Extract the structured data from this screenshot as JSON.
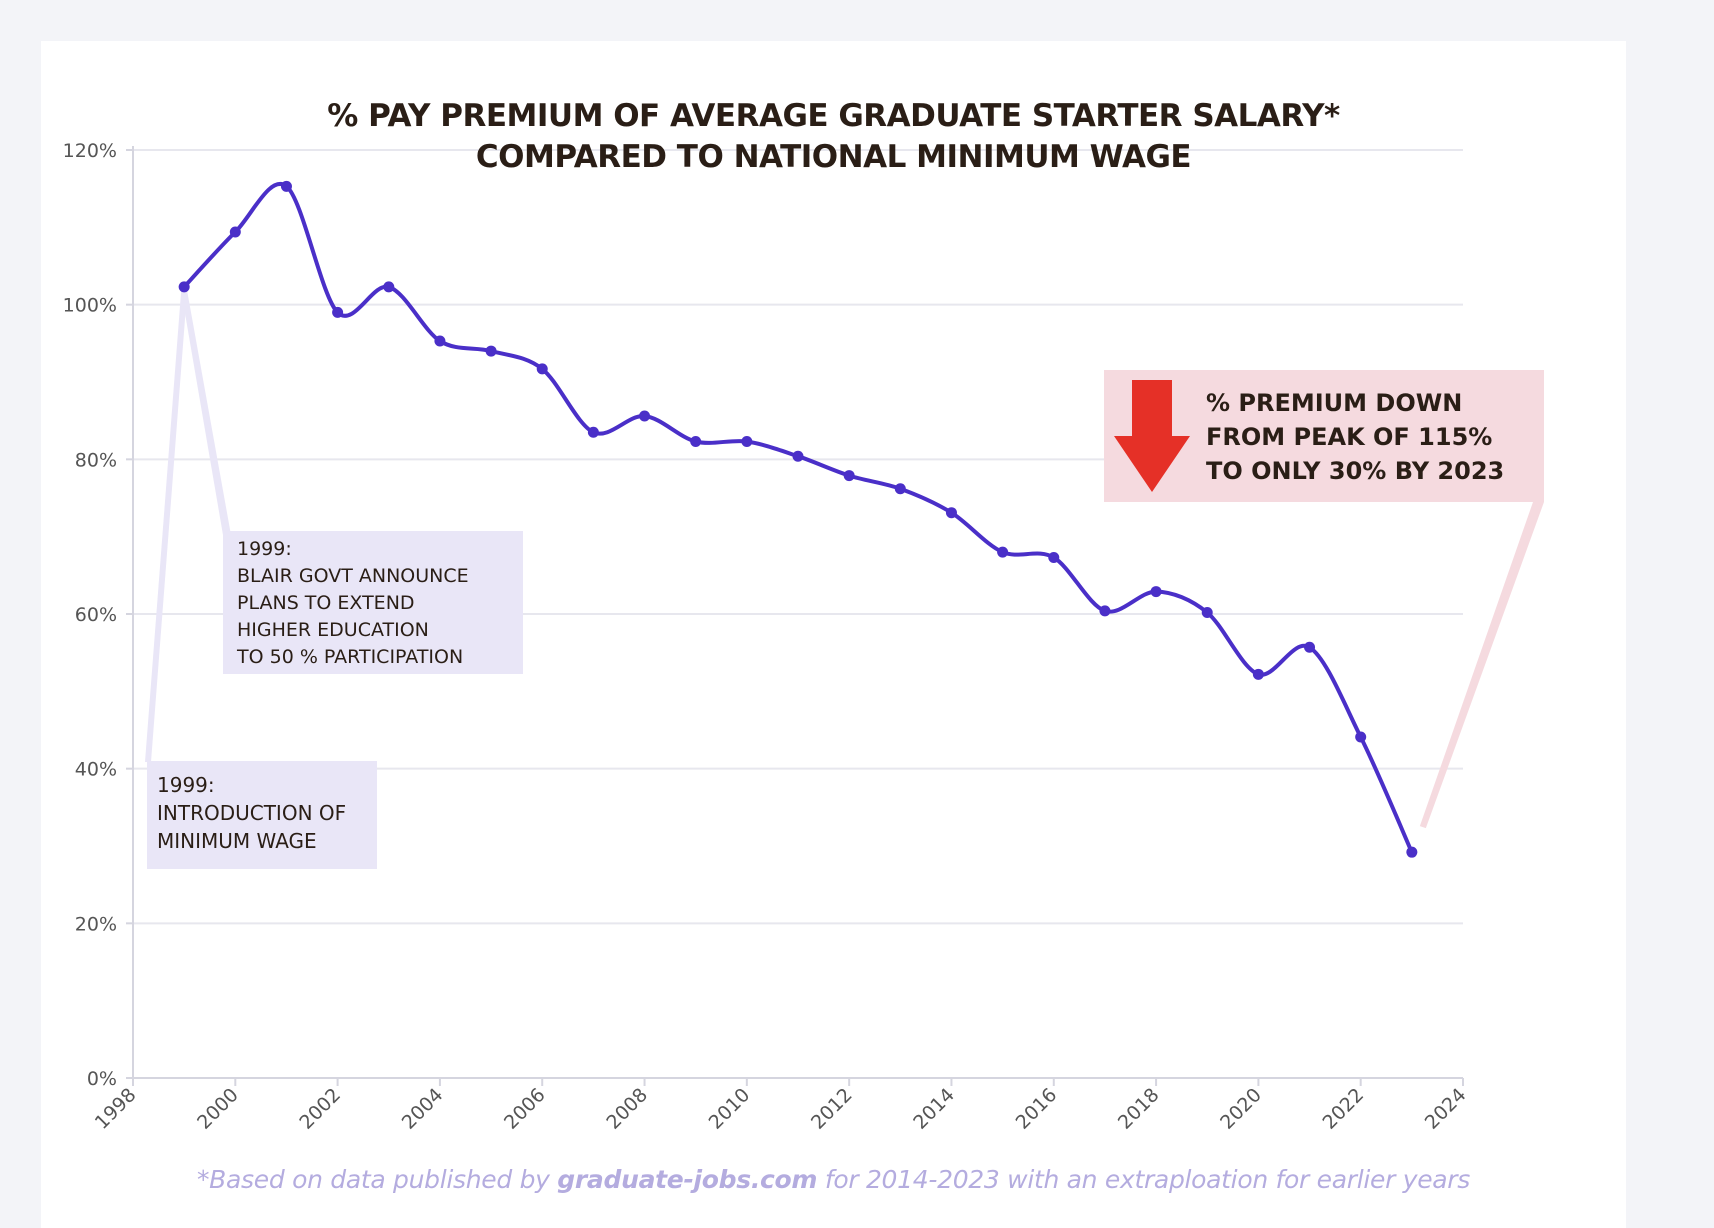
{
  "chart_data": {
    "type": "line",
    "title": [
      "% PAY PREMIUM OF AVERAGE GRADUATE STARTER SALARY*",
      "COMPARED TO NATIONAL MINIMUM WAGE"
    ],
    "xlabel": "",
    "ylabel": "",
    "xlim": [
      1998,
      2024
    ],
    "ylim": [
      0,
      120
    ],
    "x_ticks": [
      "1998",
      "2000",
      "2002",
      "2004",
      "2006",
      "2008",
      "2010",
      "2012",
      "2014",
      "2016",
      "2018",
      "2020",
      "2022",
      "2024"
    ],
    "y_ticks": [
      "0%",
      "20%",
      "40%",
      "60%",
      "80%",
      "100%",
      "120%"
    ],
    "grid": true,
    "series": [
      {
        "name": "% pay premium",
        "color": "#4a2fc8",
        "x": [
          1999,
          2000,
          2001,
          2002,
          2003,
          2004,
          2005,
          2006,
          2007,
          2008,
          2009,
          2010,
          2011,
          2012,
          2013,
          2014,
          2015,
          2016,
          2017,
          2018,
          2019,
          2020,
          2021,
          2022,
          2023
        ],
        "values": [
          102.3,
          109.4,
          115.3,
          99.0,
          102.3,
          95.3,
          94.0,
          91.7,
          83.5,
          85.6,
          82.3,
          82.3,
          80.4,
          77.9,
          76.2,
          73.1,
          68.0,
          67.3,
          60.4,
          62.9,
          60.2,
          52.2,
          55.7,
          44.1,
          29.2
        ]
      }
    ],
    "annotations": [
      {
        "id": "min-wage",
        "lines": [
          "1999:",
          "INTRODUCTION OF",
          "MINIMUM WAGE"
        ],
        "points_to": {
          "x": 1999,
          "y": 102.3
        }
      },
      {
        "id": "blair",
        "lines": [
          "1999:",
          "BLAIR GOVT ANNOUNCE",
          "PLANS TO EXTEND",
          "HIGHER EDUCATION",
          "TO 50 % PARTICIPATION"
        ],
        "points_to": {
          "x": 1999,
          "y": 102.3
        }
      },
      {
        "id": "premium-down",
        "lines": [
          "% PREMIUM DOWN",
          "FROM PEAK OF 115%",
          "TO ONLY 30% BY 2023"
        ],
        "points_to": {
          "x": 2023,
          "y": 29.2
        }
      }
    ]
  },
  "colors": {
    "line": "#4a2fc8",
    "annotation_box": "#e9e6f7",
    "callout_box": "#f5dadf",
    "arrow": "#e53027",
    "footnote": "#b4acdf"
  },
  "footnote": {
    "prefix": "*Based on data published by ",
    "source": "graduate-jobs.com",
    "suffix": " for 2014-2023 with an extraploation for earlier years"
  }
}
